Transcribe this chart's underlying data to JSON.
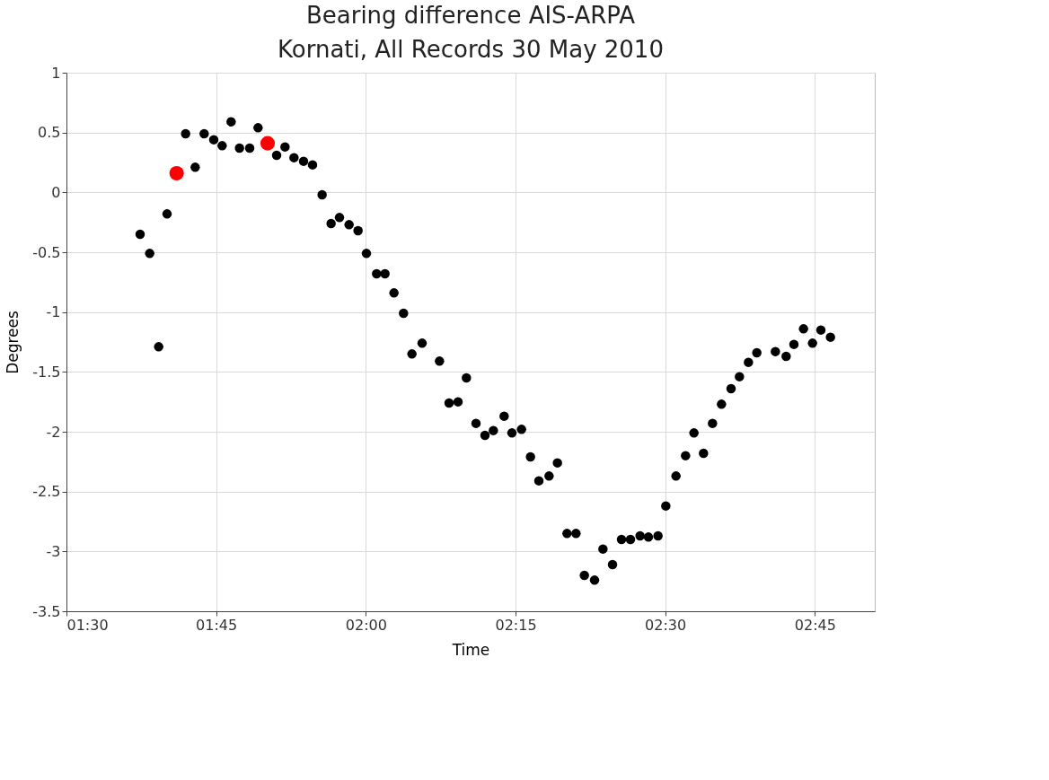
{
  "chart_data": {
    "type": "scatter",
    "title": "Bearing difference AIS-ARPA",
    "subtitle": "Kornati, All Records 30 May 2010",
    "xlabel": "Time",
    "ylabel": "Degrees",
    "grid": true,
    "legend": false,
    "marker": "circle",
    "xlim": [
      1.5,
      2.85
    ],
    "xticks": [
      {
        "value": 1.5,
        "label": "01:30"
      },
      {
        "value": 1.75,
        "label": "01:45"
      },
      {
        "value": 2.0,
        "label": "02:00"
      },
      {
        "value": 2.25,
        "label": "02:15"
      },
      {
        "value": 2.5,
        "label": "02:30"
      },
      {
        "value": 2.75,
        "label": "02:45"
      }
    ],
    "ylim": [
      -3.5,
      1
    ],
    "yticks": [
      1,
      0.5,
      0,
      -0.5,
      -1,
      -1.5,
      -2,
      -2.5,
      -3,
      -3.5
    ],
    "series": [
      {
        "color": "#000000",
        "x": [
          1.623,
          1.639,
          1.654,
          1.668,
          1.699,
          1.715,
          1.73,
          1.746,
          1.76,
          1.775,
          1.789,
          1.806,
          1.82,
          1.851,
          1.865,
          1.88,
          1.896,
          1.911,
          1.927,
          1.942,
          1.956,
          1.972,
          1.987,
          2.001,
          2.018,
          2.032,
          2.047,
          2.063,
          2.077,
          2.094,
          2.123,
          2.139,
          2.154,
          2.168,
          2.184,
          2.199,
          2.213,
          2.231,
          2.244,
          2.26,
          2.275,
          2.289,
          2.306,
          2.32,
          2.336,
          2.351,
          2.365,
          2.382,
          2.396,
          2.412,
          2.427,
          2.442,
          2.458,
          2.472,
          2.488,
          2.501,
          2.518,
          2.534,
          2.548,
          2.564,
          2.579,
          2.594,
          2.61,
          2.624,
          2.639,
          2.653,
          2.684,
          2.702,
          2.715,
          2.731,
          2.746,
          2.76,
          2.776
        ],
        "values": [
          -0.35,
          -0.51,
          -1.29,
          -0.18,
          0.49,
          0.21,
          0.49,
          0.44,
          0.39,
          0.59,
          0.37,
          0.37,
          0.54,
          0.31,
          0.38,
          0.29,
          0.26,
          0.23,
          -0.02,
          -0.26,
          -0.21,
          -0.27,
          -0.32,
          -0.51,
          -0.68,
          -0.68,
          -0.84,
          -1.01,
          -1.35,
          -1.26,
          -1.41,
          -1.76,
          -1.75,
          -1.55,
          -1.93,
          -2.03,
          -1.99,
          -1.87,
          -2.01,
          -1.98,
          -2.21,
          -2.41,
          -2.37,
          -2.26,
          -2.85,
          -2.85,
          -3.2,
          -3.24,
          -2.98,
          -3.11,
          -2.9,
          -2.9,
          -2.87,
          -2.88,
          -2.87,
          -2.62,
          -2.37,
          -2.2,
          -2.01,
          -2.18,
          -1.93,
          -1.77,
          -1.64,
          -1.54,
          -1.42,
          -1.34,
          -1.33,
          -1.37,
          -1.27,
          -1.14,
          -1.26,
          -1.15,
          -1.21
        ]
      },
      {
        "color": "#ff0000",
        "x": [
          1.684,
          1.836
        ],
        "values": [
          0.16,
          0.41
        ]
      }
    ]
  }
}
